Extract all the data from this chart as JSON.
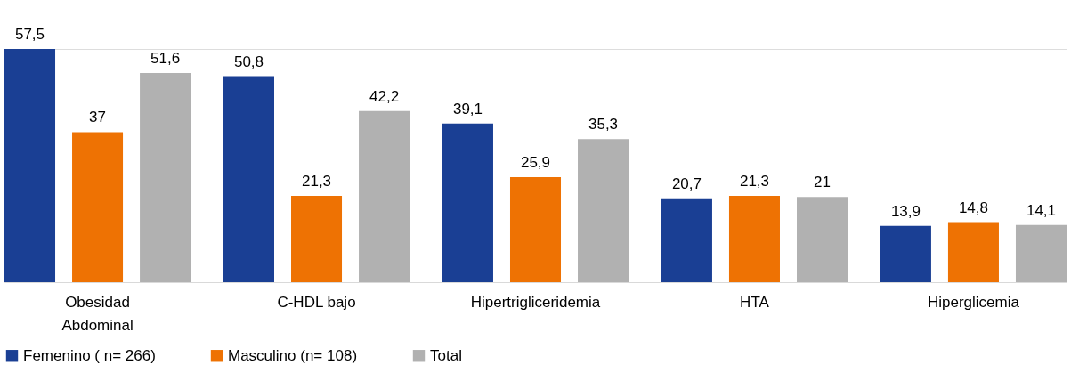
{
  "chart_data": {
    "type": "bar",
    "categories": [
      "Obesidad Abdominal",
      "C-HDL bajo",
      "Hipertrigliceridemia",
      "HTA",
      "Hiperglicemia"
    ],
    "series": [
      {
        "name": "Femenino ( n= 266)",
        "color": "#1a3f94",
        "values": [
          57.5,
          50.8,
          39.1,
          20.7,
          13.9
        ],
        "value_labels": [
          "57,5",
          "50,8",
          "39,1",
          "20,7",
          "13,9"
        ]
      },
      {
        "name": "Masculino (n= 108)",
        "color": "#ee7203",
        "values": [
          37,
          21.3,
          25.9,
          21.3,
          14.8
        ],
        "value_labels": [
          "37",
          "21,3",
          "25,9",
          "21,3",
          "14,8"
        ]
      },
      {
        "name": "Total",
        "color": "#b1b1b1",
        "values": [
          51.6,
          42.2,
          35.3,
          21,
          14.1
        ],
        "value_labels": [
          "51,6",
          "42,2",
          "35,3",
          "21",
          "14,1"
        ]
      }
    ],
    "grid": false,
    "legend": "bottom",
    "tick_labels": "x"
  }
}
